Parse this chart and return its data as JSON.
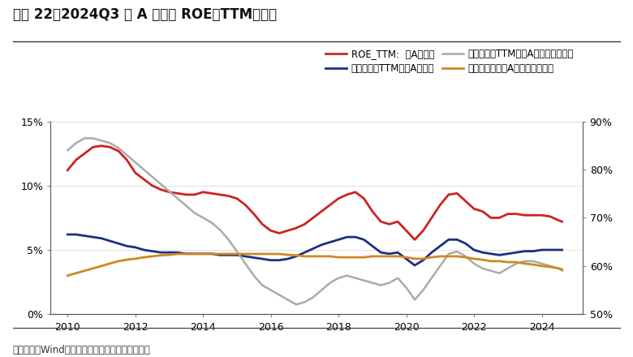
{
  "title": "图表 22、2024Q3 全 A 非金融 ROE（TTM）回落",
  "source_text": "资料来源：Wind，兴业证券经济与金融研究院整理",
  "legend": [
    "ROE_TTM:  全A非金融",
    "销售净利率TTM：全A非金融",
    "资产周转率TTM：全A非金融（右轴）",
    "资产负债率：全A非金融（右轴）"
  ],
  "legend_colors": [
    "#cc2222",
    "#1a3080",
    "#aaaaaa",
    "#d08820"
  ],
  "xlim": [
    2009.5,
    2025.2
  ],
  "ylim_left": [
    0,
    15
  ],
  "ylim_right": [
    50,
    90
  ],
  "yticks_left": [
    0,
    5,
    10,
    15
  ],
  "yticks_right": [
    50,
    60,
    70,
    80,
    90
  ],
  "xticks": [
    2010,
    2012,
    2014,
    2016,
    2018,
    2020,
    2022,
    2024
  ],
  "roe_ttm": {
    "x": [
      2010.0,
      2010.25,
      2010.5,
      2010.75,
      2011.0,
      2011.25,
      2011.5,
      2011.75,
      2012.0,
      2012.25,
      2012.5,
      2012.75,
      2013.0,
      2013.25,
      2013.5,
      2013.75,
      2014.0,
      2014.25,
      2014.5,
      2014.75,
      2015.0,
      2015.25,
      2015.5,
      2015.75,
      2016.0,
      2016.25,
      2016.5,
      2016.75,
      2017.0,
      2017.25,
      2017.5,
      2017.75,
      2018.0,
      2018.25,
      2018.5,
      2018.75,
      2019.0,
      2019.25,
      2019.5,
      2019.75,
      2020.0,
      2020.25,
      2020.5,
      2020.75,
      2021.0,
      2021.25,
      2021.5,
      2021.75,
      2022.0,
      2022.25,
      2022.5,
      2022.75,
      2023.0,
      2023.25,
      2023.5,
      2023.75,
      2024.0,
      2024.25,
      2024.5,
      2024.6
    ],
    "y": [
      11.2,
      12.0,
      12.5,
      13.0,
      13.1,
      13.0,
      12.7,
      12.0,
      11.0,
      10.5,
      10.0,
      9.7,
      9.5,
      9.4,
      9.3,
      9.3,
      9.5,
      9.4,
      9.3,
      9.2,
      9.0,
      8.5,
      7.8,
      7.0,
      6.5,
      6.3,
      6.5,
      6.7,
      7.0,
      7.5,
      8.0,
      8.5,
      9.0,
      9.3,
      9.5,
      9.0,
      8.0,
      7.2,
      7.0,
      7.2,
      6.5,
      5.8,
      6.5,
      7.5,
      8.5,
      9.3,
      9.4,
      8.8,
      8.2,
      8.0,
      7.5,
      7.5,
      7.8,
      7.8,
      7.7,
      7.7,
      7.7,
      7.6,
      7.3,
      7.2
    ]
  },
  "net_margin_ttm": {
    "x": [
      2010.0,
      2010.25,
      2010.5,
      2010.75,
      2011.0,
      2011.25,
      2011.5,
      2011.75,
      2012.0,
      2012.25,
      2012.5,
      2012.75,
      2013.0,
      2013.25,
      2013.5,
      2013.75,
      2014.0,
      2014.25,
      2014.5,
      2014.75,
      2015.0,
      2015.25,
      2015.5,
      2015.75,
      2016.0,
      2016.25,
      2016.5,
      2016.75,
      2017.0,
      2017.25,
      2017.5,
      2017.75,
      2018.0,
      2018.25,
      2018.5,
      2018.75,
      2019.0,
      2019.25,
      2019.5,
      2019.75,
      2020.0,
      2020.25,
      2020.5,
      2020.75,
      2021.0,
      2021.25,
      2021.5,
      2021.75,
      2022.0,
      2022.25,
      2022.5,
      2022.75,
      2023.0,
      2023.25,
      2023.5,
      2023.75,
      2024.0,
      2024.25,
      2024.5,
      2024.6
    ],
    "y": [
      6.2,
      6.2,
      6.1,
      6.0,
      5.9,
      5.7,
      5.5,
      5.3,
      5.2,
      5.0,
      4.9,
      4.8,
      4.8,
      4.8,
      4.7,
      4.7,
      4.7,
      4.7,
      4.6,
      4.6,
      4.6,
      4.5,
      4.4,
      4.3,
      4.2,
      4.2,
      4.3,
      4.5,
      4.8,
      5.1,
      5.4,
      5.6,
      5.8,
      6.0,
      6.0,
      5.8,
      5.3,
      4.8,
      4.7,
      4.8,
      4.3,
      3.8,
      4.2,
      4.8,
      5.3,
      5.8,
      5.8,
      5.5,
      5.0,
      4.8,
      4.7,
      4.6,
      4.7,
      4.8,
      4.9,
      4.9,
      5.0,
      5.0,
      5.0,
      5.0
    ]
  },
  "asset_turnover_ttm": {
    "x": [
      2010.0,
      2010.25,
      2010.5,
      2010.75,
      2011.0,
      2011.25,
      2011.5,
      2011.75,
      2012.0,
      2012.25,
      2012.5,
      2012.75,
      2013.0,
      2013.25,
      2013.5,
      2013.75,
      2014.0,
      2014.25,
      2014.5,
      2014.75,
      2015.0,
      2015.25,
      2015.5,
      2015.75,
      2016.0,
      2016.25,
      2016.5,
      2016.75,
      2017.0,
      2017.25,
      2017.5,
      2017.75,
      2018.0,
      2018.25,
      2018.5,
      2018.75,
      2019.0,
      2019.25,
      2019.5,
      2019.75,
      2020.0,
      2020.25,
      2020.5,
      2020.75,
      2021.0,
      2021.25,
      2021.5,
      2021.75,
      2022.0,
      2022.25,
      2022.5,
      2022.75,
      2023.0,
      2023.25,
      2023.5,
      2023.75,
      2024.0,
      2024.25,
      2024.5,
      2024.6
    ],
    "y": [
      84.0,
      85.5,
      86.5,
      86.5,
      86.0,
      85.5,
      84.5,
      83.0,
      81.5,
      80.0,
      78.5,
      77.0,
      75.5,
      74.0,
      72.5,
      71.0,
      70.0,
      69.0,
      67.5,
      65.5,
      63.0,
      60.5,
      58.0,
      56.0,
      55.0,
      54.0,
      53.0,
      52.0,
      52.5,
      53.5,
      55.0,
      56.5,
      57.5,
      58.0,
      57.5,
      57.0,
      56.5,
      56.0,
      56.5,
      57.5,
      55.5,
      53.0,
      55.0,
      57.5,
      60.0,
      62.5,
      63.0,
      62.0,
      60.5,
      59.5,
      59.0,
      58.5,
      59.5,
      60.5,
      61.0,
      61.0,
      60.5,
      60.0,
      59.5,
      59.0
    ]
  },
  "debt_ratio": {
    "x": [
      2010.0,
      2010.25,
      2010.5,
      2010.75,
      2011.0,
      2011.25,
      2011.5,
      2011.75,
      2012.0,
      2012.25,
      2012.5,
      2012.75,
      2013.0,
      2013.25,
      2013.5,
      2013.75,
      2014.0,
      2014.25,
      2014.5,
      2014.75,
      2015.0,
      2015.25,
      2015.5,
      2015.75,
      2016.0,
      2016.25,
      2016.5,
      2016.75,
      2017.0,
      2017.25,
      2017.5,
      2017.75,
      2018.0,
      2018.25,
      2018.5,
      2018.75,
      2019.0,
      2019.25,
      2019.5,
      2019.75,
      2020.0,
      2020.25,
      2020.5,
      2020.75,
      2021.0,
      2021.25,
      2021.5,
      2021.75,
      2022.0,
      2022.25,
      2022.5,
      2022.75,
      2023.0,
      2023.25,
      2023.5,
      2023.75,
      2024.0,
      2024.25,
      2024.5,
      2024.6
    ],
    "y": [
      58.0,
      58.5,
      59.0,
      59.5,
      60.0,
      60.5,
      61.0,
      61.3,
      61.5,
      61.8,
      62.0,
      62.2,
      62.3,
      62.5,
      62.5,
      62.5,
      62.5,
      62.5,
      62.5,
      62.5,
      62.5,
      62.5,
      62.5,
      62.5,
      62.5,
      62.5,
      62.3,
      62.2,
      62.0,
      62.0,
      62.0,
      62.0,
      61.8,
      61.8,
      61.8,
      61.8,
      62.0,
      62.0,
      62.0,
      62.0,
      61.8,
      61.5,
      61.5,
      61.8,
      62.0,
      62.0,
      62.0,
      61.8,
      61.5,
      61.3,
      61.0,
      61.0,
      60.8,
      60.8,
      60.5,
      60.3,
      60.0,
      59.8,
      59.5,
      59.3
    ]
  },
  "bg_color": "#ffffff",
  "plot_bg_color": "#ffffff",
  "title_color": "#111111",
  "source_color": "#333333"
}
